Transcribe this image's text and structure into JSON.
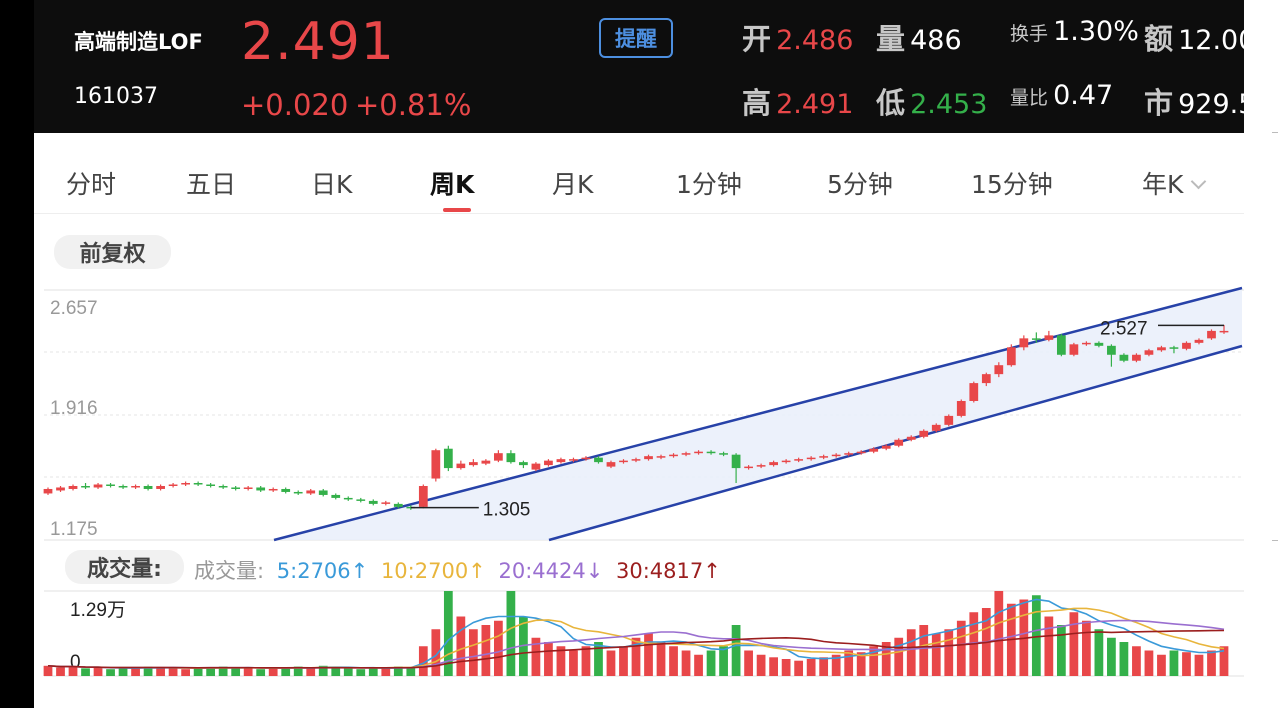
{
  "header": {
    "name": "高端制造LOF",
    "code": "161037",
    "price": "2.491",
    "change": "+0.020",
    "change_pct": "+0.81%",
    "remind_label": "提醒",
    "open_label": "开",
    "open_value": "2.486",
    "volume_label": "量",
    "volume_value": "486",
    "turnover_label": "换手",
    "turnover_value": "1.30%",
    "amount_label": "额",
    "amount_value": "12.00",
    "high_label": "高",
    "high_value": "2.491",
    "low_label": "低",
    "low_value": "2.453",
    "volratio_label": "量比",
    "volratio_value": "0.47",
    "mcap_label": "市",
    "mcap_value": "929.5"
  },
  "tabs": [
    "分时",
    "五日",
    "日K",
    "周K",
    "月K",
    "1分钟",
    "5分钟",
    "15分钟",
    "年K"
  ],
  "active_tab": "周K",
  "adjust_label": "前复权",
  "colors": {
    "up": "#e84749",
    "down": "#34b04a",
    "accent": "#4d8fe0",
    "channel": "#2742a8"
  },
  "chart_data": {
    "type": "candlestick",
    "price_axis": {
      "labels": [
        "2.657",
        "1.916",
        "1.175"
      ],
      "values": [
        2.657,
        1.916,
        1.175
      ]
    },
    "annotations": [
      {
        "text": "1.305",
        "value": 1.305
      },
      {
        "text": "2.527",
        "value": 2.527
      }
    ],
    "candles": [
      [
        1.4,
        1.43,
        1.39,
        1.44
      ],
      [
        1.42,
        1.44,
        1.41,
        1.45
      ],
      [
        1.43,
        1.45,
        1.42,
        1.46
      ],
      [
        1.45,
        1.44,
        1.43,
        1.47
      ],
      [
        1.44,
        1.46,
        1.43,
        1.47
      ],
      [
        1.46,
        1.45,
        1.44,
        1.47
      ],
      [
        1.45,
        1.44,
        1.43,
        1.46
      ],
      [
        1.44,
        1.45,
        1.43,
        1.46
      ],
      [
        1.45,
        1.43,
        1.42,
        1.46
      ],
      [
        1.43,
        1.45,
        1.42,
        1.46
      ],
      [
        1.45,
        1.46,
        1.44,
        1.47
      ],
      [
        1.46,
        1.47,
        1.45,
        1.48
      ],
      [
        1.47,
        1.46,
        1.45,
        1.48
      ],
      [
        1.46,
        1.45,
        1.44,
        1.47
      ],
      [
        1.45,
        1.44,
        1.43,
        1.46
      ],
      [
        1.44,
        1.43,
        1.42,
        1.45
      ],
      [
        1.43,
        1.44,
        1.42,
        1.45
      ],
      [
        1.44,
        1.42,
        1.41,
        1.45
      ],
      [
        1.42,
        1.43,
        1.41,
        1.44
      ],
      [
        1.43,
        1.41,
        1.4,
        1.44
      ],
      [
        1.41,
        1.4,
        1.39,
        1.42
      ],
      [
        1.4,
        1.42,
        1.39,
        1.43
      ],
      [
        1.42,
        1.39,
        1.38,
        1.43
      ],
      [
        1.39,
        1.37,
        1.36,
        1.4
      ],
      [
        1.37,
        1.36,
        1.35,
        1.38
      ],
      [
        1.36,
        1.35,
        1.34,
        1.37
      ],
      [
        1.35,
        1.33,
        1.32,
        1.36
      ],
      [
        1.33,
        1.34,
        1.32,
        1.35
      ],
      [
        1.33,
        1.31,
        1.3,
        1.34
      ],
      [
        1.31,
        1.3,
        1.29,
        1.32
      ],
      [
        1.31,
        1.45,
        1.3,
        1.46
      ],
      [
        1.5,
        1.69,
        1.48,
        1.7
      ],
      [
        1.7,
        1.57,
        1.55,
        1.72
      ],
      [
        1.57,
        1.6,
        1.56,
        1.62
      ],
      [
        1.59,
        1.61,
        1.58,
        1.63
      ],
      [
        1.6,
        1.62,
        1.59,
        1.63
      ],
      [
        1.62,
        1.67,
        1.61,
        1.69
      ],
      [
        1.67,
        1.61,
        1.6,
        1.69
      ],
      [
        1.61,
        1.59,
        1.57,
        1.62
      ],
      [
        1.56,
        1.6,
        1.55,
        1.61
      ],
      [
        1.59,
        1.62,
        1.58,
        1.63
      ],
      [
        1.61,
        1.63,
        1.6,
        1.64
      ],
      [
        1.62,
        1.63,
        1.61,
        1.64
      ],
      [
        1.63,
        1.64,
        1.62,
        1.65
      ],
      [
        1.64,
        1.61,
        1.6,
        1.65
      ],
      [
        1.58,
        1.61,
        1.57,
        1.62
      ],
      [
        1.61,
        1.62,
        1.6,
        1.63
      ],
      [
        1.62,
        1.63,
        1.61,
        1.64
      ],
      [
        1.63,
        1.65,
        1.62,
        1.66
      ],
      [
        1.64,
        1.65,
        1.63,
        1.66
      ],
      [
        1.65,
        1.66,
        1.64,
        1.67
      ],
      [
        1.66,
        1.67,
        1.65,
        1.68
      ],
      [
        1.67,
        1.68,
        1.66,
        1.69
      ],
      [
        1.68,
        1.67,
        1.66,
        1.69
      ],
      [
        1.67,
        1.66,
        1.65,
        1.68
      ],
      [
        1.66,
        1.57,
        1.47,
        1.67
      ],
      [
        1.57,
        1.58,
        1.56,
        1.59
      ],
      [
        1.58,
        1.59,
        1.57,
        1.6
      ],
      [
        1.59,
        1.61,
        1.58,
        1.62
      ],
      [
        1.61,
        1.62,
        1.6,
        1.63
      ],
      [
        1.62,
        1.63,
        1.61,
        1.64
      ],
      [
        1.63,
        1.64,
        1.62,
        1.65
      ],
      [
        1.64,
        1.65,
        1.63,
        1.66
      ],
      [
        1.65,
        1.66,
        1.64,
        1.67
      ],
      [
        1.66,
        1.67,
        1.65,
        1.68
      ],
      [
        1.67,
        1.68,
        1.66,
        1.69
      ],
      [
        1.68,
        1.7,
        1.67,
        1.71
      ],
      [
        1.7,
        1.72,
        1.69,
        1.73
      ],
      [
        1.72,
        1.76,
        1.71,
        1.77
      ],
      [
        1.76,
        1.78,
        1.75,
        1.79
      ],
      [
        1.78,
        1.82,
        1.77,
        1.83
      ],
      [
        1.82,
        1.86,
        1.81,
        1.87
      ],
      [
        1.86,
        1.92,
        1.85,
        1.93
      ],
      [
        1.92,
        2.02,
        1.91,
        2.03
      ],
      [
        2.02,
        2.14,
        2.01,
        2.15
      ],
      [
        2.14,
        2.2,
        2.12,
        2.21
      ],
      [
        2.2,
        2.26,
        2.18,
        2.28
      ],
      [
        2.26,
        2.38,
        2.25,
        2.4
      ],
      [
        2.38,
        2.44,
        2.36,
        2.46
      ],
      [
        2.44,
        2.43,
        2.41,
        2.48
      ],
      [
        2.43,
        2.46,
        2.42,
        2.49
      ],
      [
        2.46,
        2.33,
        2.32,
        2.47
      ],
      [
        2.33,
        2.4,
        2.32,
        2.41
      ],
      [
        2.4,
        2.41,
        2.39,
        2.42
      ],
      [
        2.41,
        2.39,
        2.38,
        2.42
      ],
      [
        2.39,
        2.33,
        2.25,
        2.4
      ],
      [
        2.33,
        2.29,
        2.28,
        2.34
      ],
      [
        2.29,
        2.33,
        2.28,
        2.34
      ],
      [
        2.33,
        2.36,
        2.32,
        2.37
      ],
      [
        2.36,
        2.38,
        2.35,
        2.39
      ],
      [
        2.38,
        2.37,
        2.34,
        2.39
      ],
      [
        2.37,
        2.41,
        2.36,
        2.42
      ],
      [
        2.41,
        2.43,
        2.4,
        2.44
      ],
      [
        2.44,
        2.49,
        2.43,
        2.5
      ],
      [
        2.49,
        2.49,
        2.47,
        2.53
      ]
    ],
    "volume_axis": {
      "labels": [
        "1.29万",
        "0"
      ]
    },
    "volume_legend": {
      "title": "成交量:",
      "items": [
        {
          "text": "5:2706↑",
          "color": "#3a9ad9"
        },
        {
          "text": "10:2700↑",
          "color": "#e8b53c"
        },
        {
          "text": "20:4424↓",
          "color": "#9a6fd0"
        },
        {
          "text": "30:4817↑",
          "color": "#9b1e1e"
        }
      ]
    },
    "volumes": [
      0.12,
      0.1,
      0.11,
      0.09,
      0.1,
      0.08,
      0.09,
      0.1,
      0.11,
      0.09,
      0.1,
      0.08,
      0.09,
      0.1,
      0.11,
      0.09,
      0.1,
      0.08,
      0.09,
      0.1,
      0.11,
      0.09,
      0.12,
      0.1,
      0.09,
      0.08,
      0.1,
      0.09,
      0.11,
      0.1,
      0.35,
      0.55,
      1.0,
      0.7,
      0.55,
      0.6,
      0.65,
      1.0,
      0.7,
      0.45,
      0.4,
      0.35,
      0.3,
      0.35,
      0.4,
      0.3,
      0.35,
      0.45,
      0.5,
      0.4,
      0.35,
      0.3,
      0.25,
      0.3,
      0.35,
      0.6,
      0.3,
      0.25,
      0.22,
      0.2,
      0.18,
      0.2,
      0.22,
      0.25,
      0.3,
      0.28,
      0.35,
      0.4,
      0.45,
      0.55,
      0.6,
      0.5,
      0.55,
      0.65,
      0.75,
      0.8,
      1.0,
      0.85,
      0.9,
      0.95,
      0.7,
      0.6,
      0.75,
      0.65,
      0.55,
      0.45,
      0.4,
      0.35,
      0.3,
      0.25,
      0.3,
      0.28,
      0.25,
      0.3,
      0.35
    ]
  }
}
